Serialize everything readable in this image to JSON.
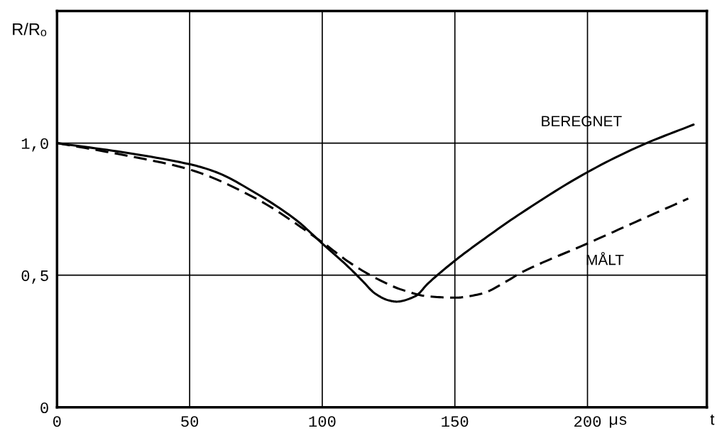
{
  "chart_data": {
    "type": "line",
    "xlabel": "t",
    "ylabel": "R/Rₒ",
    "annotations": [
      "µs"
    ],
    "xlim": [
      0,
      245
    ],
    "ylim": [
      0,
      1.5
    ],
    "xticks": [
      0,
      50,
      100,
      150,
      200
    ],
    "yticks": [
      0,
      {
        "value": 0.5,
        "label": "0,5"
      },
      {
        "value": 1.0,
        "label": "1,0"
      }
    ],
    "grid": true,
    "legend": false,
    "marker": "none",
    "series": [
      {
        "name": "BEREGNET",
        "color": "#000000",
        "line_style": "solid",
        "x": [
          0,
          25,
          50,
          60,
          75,
          90,
          100,
          110,
          115,
          120,
          125,
          128,
          135,
          140,
          150,
          160,
          175,
          200,
          220,
          240
        ],
        "values": [
          1.0,
          0.965,
          0.92,
          0.89,
          0.81,
          0.71,
          0.62,
          0.53,
          0.48,
          0.43,
          0.405,
          0.4,
          0.42,
          0.47,
          0.555,
          0.63,
          0.735,
          0.89,
          0.99,
          1.07
        ]
      },
      {
        "name": "MÅLT",
        "color": "#000000",
        "line_style": "dashed",
        "x": [
          0,
          25,
          50,
          75,
          100,
          110,
          120,
          130,
          140,
          150,
          160,
          170,
          175,
          200,
          220,
          238
        ],
        "values": [
          1.0,
          0.955,
          0.9,
          0.79,
          0.625,
          0.55,
          0.49,
          0.445,
          0.42,
          0.415,
          0.43,
          0.48,
          0.51,
          0.62,
          0.71,
          0.79
        ]
      }
    ]
  }
}
